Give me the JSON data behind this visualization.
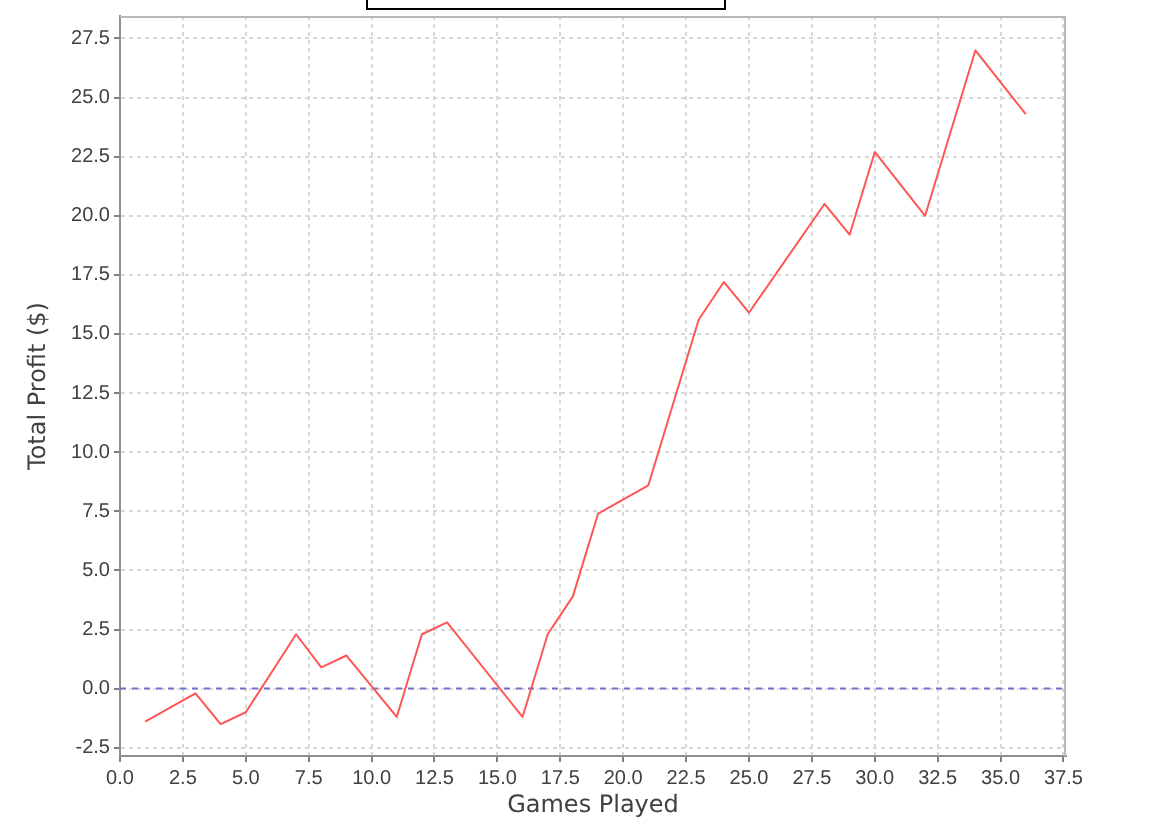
{
  "chart_data": {
    "type": "line",
    "xlabel": "Games Played",
    "ylabel": "Total Profit ($)",
    "x": [
      1,
      3,
      4,
      5,
      7,
      8,
      9,
      11,
      12,
      13,
      16,
      17,
      18,
      19,
      21,
      23,
      24,
      25,
      28,
      29,
      30,
      32,
      34,
      36
    ],
    "series": [
      {
        "color": "#ff5555",
        "values": [
          -1.4,
          -0.2,
          -1.5,
          -1.0,
          2.3,
          0.9,
          1.4,
          -1.2,
          2.3,
          2.8,
          -1.2,
          2.3,
          3.9,
          7.4,
          8.6,
          15.6,
          17.2,
          15.9,
          20.5,
          19.2,
          22.7,
          20.0,
          27.0,
          24.3
        ]
      }
    ],
    "xlim": [
      0,
      37.6
    ],
    "ylim": [
      -2.85,
      28.45
    ],
    "xticks": [
      {
        "value": 0,
        "label": "0.0"
      },
      2.5,
      {
        "value": 5,
        "label": "5.0"
      },
      7.5,
      {
        "value": 10,
        "label": "10.0"
      },
      12.5,
      {
        "value": 15,
        "label": "15.0"
      },
      17.5,
      {
        "value": 20,
        "label": "20.0"
      },
      22.5,
      {
        "value": 25,
        "label": "25.0"
      },
      27.5,
      {
        "value": 30,
        "label": "30.0"
      },
      32.5,
      {
        "value": 35,
        "label": "35.0"
      },
      37.5
    ],
    "yticks": [
      -2.5,
      {
        "value": 0,
        "label": "0.0"
      },
      2.5,
      {
        "value": 5,
        "label": "5.0"
      },
      7.5,
      {
        "value": 10,
        "label": "10.0"
      },
      12.5,
      {
        "value": 15,
        "label": "15.0"
      },
      17.5,
      {
        "value": 20,
        "label": "20.0"
      },
      22.5,
      {
        "value": 25,
        "label": "25.0"
      },
      27.5
    ],
    "ref_lines": [
      {
        "axis": "y",
        "value": 0,
        "color": "#7070d0",
        "line_style": "dashed"
      }
    ],
    "grid": true,
    "marker": "none"
  }
}
